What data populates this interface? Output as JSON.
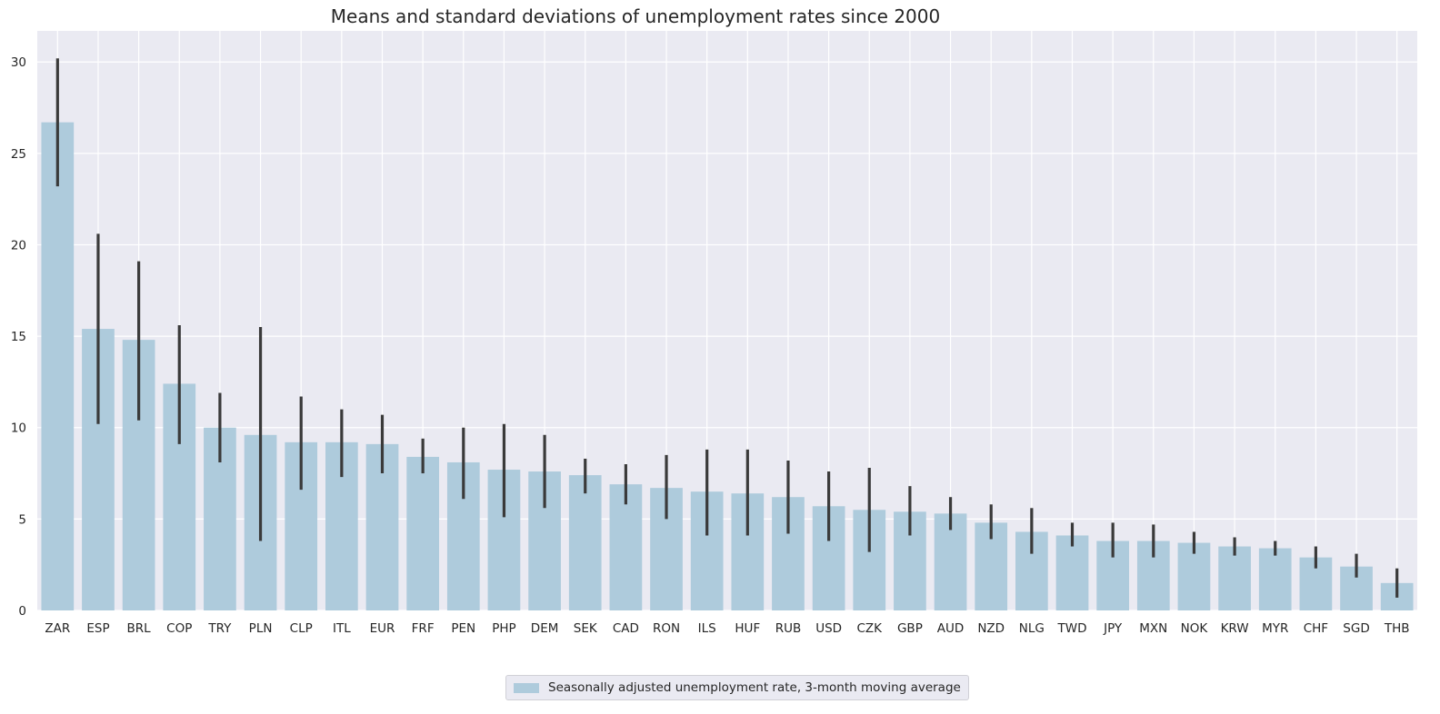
{
  "chart_data": {
    "type": "bar",
    "title": "Means and standard deviations of unemployment rates since 2000",
    "xlabel": "",
    "ylabel": "",
    "ylim": [
      0,
      31.7
    ],
    "yticks": [
      0,
      5,
      10,
      15,
      20,
      25,
      30
    ],
    "grid": true,
    "legend_position": "bottom-center",
    "colors": {
      "bar": "#aecbdc",
      "error": "#3a3a3a",
      "plot_bg": "#eaeaf2",
      "grid": "#ffffff"
    },
    "categories": [
      "ZAR",
      "ESP",
      "BRL",
      "COP",
      "TRY",
      "PLN",
      "CLP",
      "ITL",
      "EUR",
      "FRF",
      "PEN",
      "PHP",
      "DEM",
      "SEK",
      "CAD",
      "RON",
      "ILS",
      "HUF",
      "RUB",
      "USD",
      "CZK",
      "GBP",
      "AUD",
      "NZD",
      "NLG",
      "TWD",
      "JPY",
      "MXN",
      "NOK",
      "KRW",
      "MYR",
      "CHF",
      "SGD",
      "THB"
    ],
    "series": [
      {
        "name": "Seasonally adjusted unemployment rate, 3-month moving average",
        "values": [
          26.7,
          15.4,
          14.8,
          12.4,
          10.0,
          9.6,
          9.2,
          9.2,
          9.1,
          8.4,
          8.1,
          7.7,
          7.6,
          7.4,
          6.9,
          6.7,
          6.5,
          6.4,
          6.2,
          5.7,
          5.5,
          5.4,
          5.3,
          4.8,
          4.3,
          4.1,
          3.8,
          3.8,
          3.7,
          3.5,
          3.4,
          2.9,
          2.4,
          1.5
        ],
        "error_low": [
          23.2,
          10.2,
          10.4,
          9.1,
          8.1,
          3.8,
          6.6,
          7.3,
          7.5,
          7.5,
          6.1,
          5.1,
          5.6,
          6.4,
          5.8,
          5.0,
          4.1,
          4.1,
          4.2,
          3.8,
          3.2,
          4.1,
          4.4,
          3.9,
          3.1,
          3.5,
          2.9,
          2.9,
          3.1,
          3.0,
          3.0,
          2.3,
          1.8,
          0.7
        ],
        "error_high": [
          30.2,
          20.6,
          19.1,
          15.6,
          11.9,
          15.5,
          11.7,
          11.0,
          10.7,
          9.4,
          10.0,
          10.2,
          9.6,
          8.3,
          8.0,
          8.5,
          8.8,
          8.8,
          8.2,
          7.6,
          7.8,
          6.8,
          6.2,
          5.8,
          5.6,
          4.8,
          4.8,
          4.7,
          4.3,
          4.0,
          3.8,
          3.5,
          3.1,
          2.3
        ]
      }
    ]
  }
}
